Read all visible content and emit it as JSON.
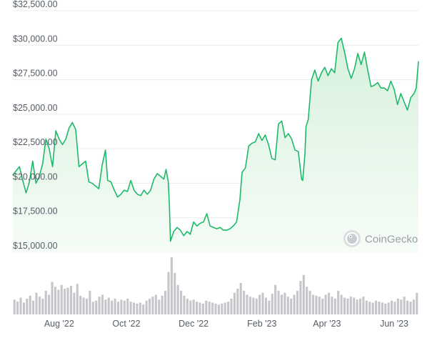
{
  "watermark": {
    "text": "CoinGecko",
    "icon": "gecko-logo-icon"
  },
  "colors": {
    "line": "#1fb96b",
    "area_top": "#d7f1dd",
    "area_bottom": "#f6fcf7",
    "grid": "#ececec",
    "volume": "#c4c6ca",
    "axis_text": "#555c66"
  },
  "chart_data": {
    "type": "line",
    "title": "",
    "xlabel": "",
    "ylabel": "",
    "ylim": [
      15000,
      32500
    ],
    "y_ticks": [
      15000,
      17500,
      20000,
      22500,
      25000,
      27500,
      30000,
      32500
    ],
    "y_tick_labels": [
      "$15,000.00",
      "$17,500.00",
      "$20,000.00",
      "$22,500.00",
      "$25,000.00",
      "$27,500.00",
      "$30,000.00",
      "$32,500.00"
    ],
    "x_range": [
      "2022-06-20",
      "2023-06-23"
    ],
    "x_ticks": [
      "2022-08-01",
      "2022-10-01",
      "2022-12-01",
      "2023-02-01",
      "2023-04-01",
      "2023-06-01"
    ],
    "x_tick_labels": [
      "Aug '22",
      "Oct '22",
      "Dec '22",
      "Feb '23",
      "Apr '23",
      "Jun '23"
    ],
    "grid": "horizontal",
    "series": [
      {
        "x": [
          "2022-06-20",
          "2022-06-23",
          "2022-06-26",
          "2022-06-29",
          "2022-07-02",
          "2022-07-05",
          "2022-07-08",
          "2022-07-11",
          "2022-07-14",
          "2022-07-17",
          "2022-07-20",
          "2022-07-23",
          "2022-07-26",
          "2022-07-29",
          "2022-08-01",
          "2022-08-04",
          "2022-08-07",
          "2022-08-10",
          "2022-08-13",
          "2022-08-16",
          "2022-08-19",
          "2022-08-22",
          "2022-08-25",
          "2022-08-28",
          "2022-08-31",
          "2022-09-03",
          "2022-09-06",
          "2022-09-09",
          "2022-09-12",
          "2022-09-14",
          "2022-09-17",
          "2022-09-20",
          "2022-09-23",
          "2022-09-26",
          "2022-09-29",
          "2022-10-02",
          "2022-10-05",
          "2022-10-08",
          "2022-10-11",
          "2022-10-14",
          "2022-10-17",
          "2022-10-20",
          "2022-10-23",
          "2022-10-26",
          "2022-10-29",
          "2022-11-01",
          "2022-11-04",
          "2022-11-06",
          "2022-11-08",
          "2022-11-09",
          "2022-11-10",
          "2022-11-13",
          "2022-11-16",
          "2022-11-19",
          "2022-11-22",
          "2022-11-25",
          "2022-11-28",
          "2022-12-01",
          "2022-12-04",
          "2022-12-07",
          "2022-12-10",
          "2022-12-13",
          "2022-12-16",
          "2022-12-19",
          "2022-12-22",
          "2022-12-25",
          "2022-12-28",
          "2022-12-31",
          "2023-01-03",
          "2023-01-06",
          "2023-01-09",
          "2023-01-12",
          "2023-01-14",
          "2023-01-17",
          "2023-01-20",
          "2023-01-23",
          "2023-01-26",
          "2023-01-29",
          "2023-02-01",
          "2023-02-04",
          "2023-02-07",
          "2023-02-10",
          "2023-02-13",
          "2023-02-16",
          "2023-02-19",
          "2023-02-22",
          "2023-02-25",
          "2023-02-28",
          "2023-03-03",
          "2023-03-06",
          "2023-03-09",
          "2023-03-10",
          "2023-03-12",
          "2023-03-13",
          "2023-03-15",
          "2023-03-18",
          "2023-03-21",
          "2023-03-24",
          "2023-03-27",
          "2023-03-30",
          "2023-04-02",
          "2023-04-05",
          "2023-04-08",
          "2023-04-11",
          "2023-04-14",
          "2023-04-17",
          "2023-04-20",
          "2023-04-23",
          "2023-04-26",
          "2023-04-29",
          "2023-05-02",
          "2023-05-05",
          "2023-05-08",
          "2023-05-11",
          "2023-05-14",
          "2023-05-17",
          "2023-05-20",
          "2023-05-23",
          "2023-05-26",
          "2023-05-29",
          "2023-06-01",
          "2023-06-04",
          "2023-06-07",
          "2023-06-10",
          "2023-06-13",
          "2023-06-16",
          "2023-06-19",
          "2023-06-21",
          "2023-06-23"
        ],
        "y": [
          20600,
          20900,
          21200,
          20200,
          19300,
          20100,
          21600,
          20000,
          20500,
          21400,
          23200,
          22500,
          21200,
          23800,
          23200,
          22800,
          23200,
          24000,
          24400,
          23900,
          21200,
          21400,
          21600,
          20100,
          20000,
          19800,
          19600,
          21300,
          22400,
          20200,
          20100,
          19500,
          19000,
          19200,
          19500,
          19400,
          20200,
          19500,
          19200,
          19100,
          19500,
          19200,
          19500,
          20300,
          20700,
          20500,
          20300,
          21000,
          20100,
          18500,
          15800,
          16500,
          16800,
          16600,
          16200,
          16500,
          16300,
          17200,
          16900,
          17100,
          17200,
          17800,
          16900,
          16800,
          16700,
          16800,
          16600,
          16600,
          16700,
          16900,
          17200,
          18800,
          20800,
          21100,
          22700,
          22900,
          23000,
          23600,
          23100,
          23500,
          22800,
          21800,
          21700,
          24300,
          24500,
          23300,
          23600,
          23200,
          22400,
          22300,
          20300,
          20200,
          22100,
          24100,
          24600,
          27500,
          28200,
          27400,
          28000,
          28400,
          27800,
          28300,
          28000,
          30200,
          30500,
          29500,
          28300,
          27600,
          28300,
          29400,
          28600,
          29500,
          28200,
          27000,
          27100,
          27300,
          26900,
          26900,
          26700,
          27400,
          26800,
          25700,
          26500,
          25900,
          25300,
          26200,
          26500,
          26900,
          28800
        ]
      }
    ],
    "volume": {
      "unit": "relative",
      "values": [
        15,
        13,
        17,
        12,
        16,
        19,
        14,
        22,
        18,
        16,
        24,
        20,
        33,
        28,
        25,
        30,
        26,
        27,
        29,
        22,
        31,
        19,
        17,
        16,
        24,
        13,
        14,
        18,
        20,
        15,
        17,
        14,
        16,
        13,
        15,
        14,
        16,
        13,
        12,
        11,
        12,
        10,
        14,
        16,
        18,
        20,
        15,
        19,
        24,
        43,
        58,
        42,
        30,
        24,
        19,
        16,
        14,
        15,
        13,
        12,
        11,
        14,
        13,
        12,
        11,
        10,
        11,
        12,
        13,
        16,
        22,
        26,
        32,
        24,
        20,
        18,
        17,
        16,
        20,
        22,
        17,
        14,
        21,
        30,
        24,
        20,
        22,
        18,
        16,
        20,
        24,
        34,
        40,
        28,
        24,
        20,
        19,
        18,
        16,
        20,
        22,
        18,
        16,
        24,
        20,
        17,
        16,
        18,
        17,
        15,
        16,
        18,
        14,
        13,
        12,
        14,
        13,
        12,
        11,
        12,
        14,
        13,
        16,
        15,
        18,
        14,
        13,
        15,
        22
      ]
    }
  }
}
